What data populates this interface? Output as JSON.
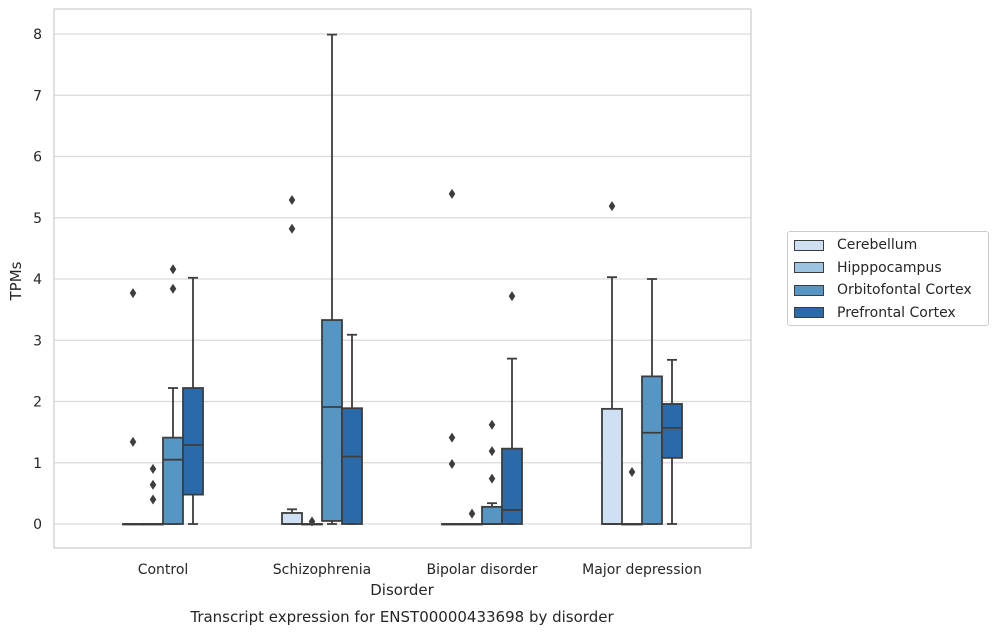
{
  "chart_data": {
    "type": "box",
    "caption": "Transcript expression for ENST00000433698 by disorder",
    "xlabel": "Disorder",
    "ylabel": "TPMs",
    "ylim": [
      -0.4,
      8.4
    ],
    "yticks": [
      "0",
      "1",
      "2",
      "3",
      "4",
      "5",
      "6",
      "7",
      "8"
    ],
    "categories": [
      "Control",
      "Schizophrenia",
      "Bipolar disorder",
      "Major depression"
    ],
    "legend_position": "right",
    "grid": true,
    "series": [
      {
        "name": "Cerebellum",
        "color": "#cfe0f2",
        "boxes": [
          {
            "q1": 0,
            "median": 0,
            "q3": 0,
            "whisker_low": 0,
            "whisker_high": 0,
            "outliers": [
              3.77,
              1.34
            ]
          },
          {
            "q1": 0,
            "median": 0,
            "q3": 0.18,
            "whisker_low": 0,
            "whisker_high": 0.24,
            "outliers": [
              5.29,
              4.82
            ]
          },
          {
            "q1": 0,
            "median": 0,
            "q3": 0,
            "whisker_low": 0,
            "whisker_high": 0,
            "outliers": [
              5.39,
              1.41,
              0.98
            ]
          },
          {
            "q1": 0,
            "median": 0,
            "q3": 1.88,
            "whisker_low": 0,
            "whisker_high": 4.03,
            "outliers": [
              5.19
            ]
          }
        ]
      },
      {
        "name": "Hipppocampus",
        "color": "#9cc4e0",
        "boxes": [
          {
            "q1": 0,
            "median": 0,
            "q3": 0,
            "whisker_low": 0,
            "whisker_high": 0,
            "outliers": [
              0.9,
              0.64,
              0.4
            ]
          },
          {
            "q1": 0,
            "median": 0,
            "q3": 0,
            "whisker_low": 0,
            "whisker_high": 0,
            "outliers": [
              0.04
            ]
          },
          {
            "q1": 0,
            "median": 0,
            "q3": 0,
            "whisker_low": 0,
            "whisker_high": 0,
            "outliers": [
              0.17
            ]
          },
          {
            "q1": 0,
            "median": 0,
            "q3": 0,
            "whisker_low": 0,
            "whisker_high": 0,
            "outliers": [
              0.85
            ]
          }
        ]
      },
      {
        "name": "Orbitofontal Cortex",
        "color": "#5596c4",
        "boxes": [
          {
            "q1": 0,
            "median": 1.05,
            "q3": 1.41,
            "whisker_low": 0,
            "whisker_high": 2.22,
            "outliers": [
              4.16,
              3.84
            ]
          },
          {
            "q1": 0.05,
            "median": 1.91,
            "q3": 3.33,
            "whisker_low": 0,
            "whisker_high": 7.99,
            "outliers": []
          },
          {
            "q1": 0,
            "median": 0,
            "q3": 0.28,
            "whisker_low": 0,
            "whisker_high": 0.34,
            "outliers": [
              1.62,
              1.19,
              0.74
            ]
          },
          {
            "q1": 0,
            "median": 1.49,
            "q3": 2.41,
            "whisker_low": 0,
            "whisker_high": 4.0,
            "outliers": []
          }
        ]
      },
      {
        "name": "Prefrontal Cortex",
        "color": "#2a6aa8",
        "boxes": [
          {
            "q1": 0.48,
            "median": 1.29,
            "q3": 2.22,
            "whisker_low": 0,
            "whisker_high": 4.02,
            "outliers": []
          },
          {
            "q1": 0,
            "median": 1.1,
            "q3": 1.89,
            "whisker_low": 0,
            "whisker_high": 3.09,
            "outliers": []
          },
          {
            "q1": 0,
            "median": 0.23,
            "q3": 1.23,
            "whisker_low": 0,
            "whisker_high": 2.7,
            "outliers": [
              3.72
            ]
          },
          {
            "q1": 1.08,
            "median": 1.57,
            "q3": 1.96,
            "whisker_low": 0,
            "whisker_high": 2.68,
            "outliers": []
          }
        ]
      }
    ]
  }
}
